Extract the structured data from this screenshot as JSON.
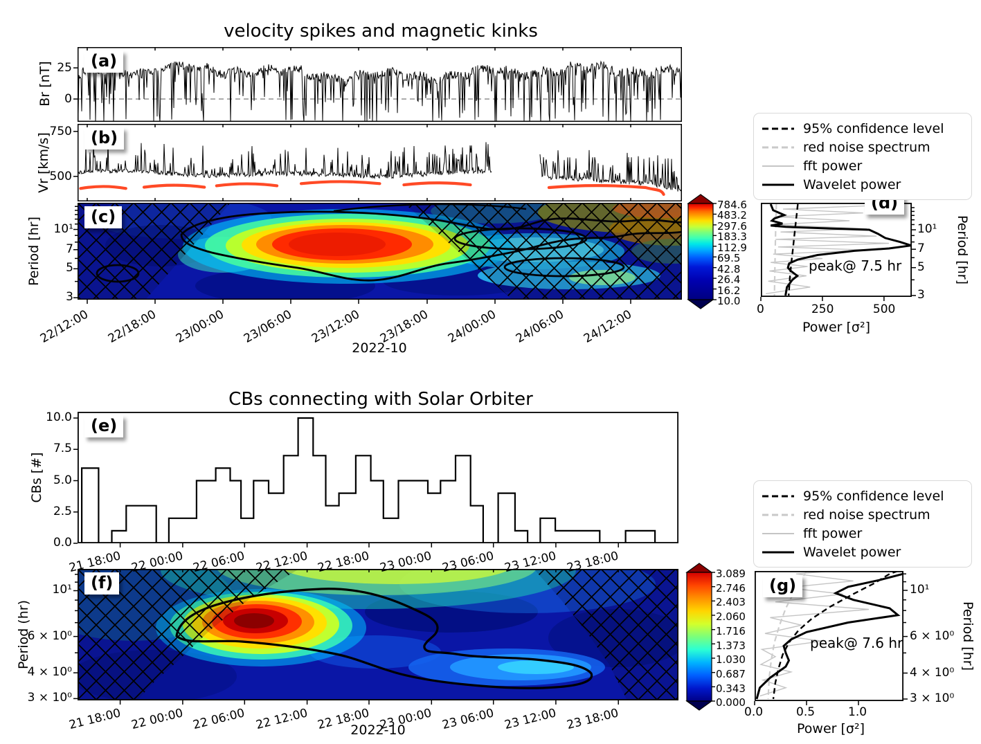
{
  "top": {
    "title": "velocity spikes and magnetic kinks",
    "xlabel": "2022-10",
    "xticklabels": [
      "22/12:00",
      "22/18:00",
      "23/00:00",
      "23/06:00",
      "23/12:00",
      "23/18:00",
      "24/00:00",
      "24/06:00",
      "24/12:00"
    ],
    "panel_a": {
      "letter": "(a)",
      "ylabel": "Br [nT]",
      "yticks": [
        "25",
        "0"
      ]
    },
    "panel_b": {
      "letter": "(b)",
      "ylabel": "Vr [km/s]",
      "yticks": [
        "750",
        "500"
      ]
    },
    "panel_c": {
      "letter": "(c)",
      "ylabel": "Period [hr]",
      "yticks": [
        "10¹",
        "7",
        "5",
        "3"
      ],
      "colorbar_ticks": [
        "784.6",
        "483.2",
        "297.6",
        "183.3",
        "112.9",
        "69.5",
        "42.8",
        "26.4",
        "16.2",
        "10.0"
      ]
    },
    "panel_d": {
      "letter": "(d)",
      "xlabel": "Power [σ²]",
      "xticks": [
        "0",
        "250",
        "500"
      ],
      "ylabel_right": "Period [hr]",
      "yticks": [
        "10¹",
        "7",
        "5",
        "3"
      ],
      "annotation": "peak@ 7.5 hr"
    }
  },
  "legend": {
    "items": [
      {
        "label": "95% confidence level",
        "style": "dashed-black"
      },
      {
        "label": "red noise spectrum",
        "style": "dashed-gray"
      },
      {
        "label": "fft power",
        "style": "solid-gray"
      },
      {
        "label": "Wavelet power",
        "style": "solid-black"
      }
    ]
  },
  "bottom": {
    "title": "CBs connecting with Solar Orbiter",
    "xlabel": "2022-10",
    "xticklabels": [
      "21 18:00",
      "22 00:00",
      "22 06:00",
      "22 12:00",
      "22 18:00",
      "23 00:00",
      "23 06:00",
      "23 12:00",
      "23 18:00"
    ],
    "panel_e": {
      "letter": "(e)",
      "ylabel": "CBs [#]",
      "yticks": [
        "0.0",
        "2.5",
        "5.0",
        "7.5",
        "10.0"
      ]
    },
    "panel_f": {
      "letter": "(f)",
      "ylabel": "Period (hr)",
      "yticks": [
        "10¹",
        "6 × 10⁰",
        "4 × 10⁰",
        "3 × 10⁰"
      ],
      "colorbar_ticks": [
        "3.089",
        "2.746",
        "2.403",
        "2.060",
        "1.716",
        "1.373",
        "1.030",
        "0.687",
        "0.343",
        "0.000"
      ]
    },
    "panel_g": {
      "letter": "(g)",
      "xlabel": "Power [σ²]",
      "xticks": [
        "0.0",
        "0.5",
        "1.0"
      ],
      "ylabel_right": "Period [hr]",
      "yticks": [
        "10¹",
        "6 × 10⁰",
        "4 × 10⁰",
        "3 × 10⁰"
      ],
      "annotation": "peak@ 7.6 hr"
    }
  },
  "chart_data": [
    {
      "panel": "a",
      "type": "line",
      "ylabel": "Br [nT]",
      "yticks": [
        25,
        0
      ],
      "ylim": [
        -18,
        42
      ],
      "zero_line_dashed_at": 0,
      "baseline_nT": 22,
      "spikes_down_to_nT": -18
    },
    {
      "panel": "b",
      "type": "line",
      "ylabel": "Vr [km/s]",
      "yticks": [
        750,
        500
      ],
      "ylim": [
        361,
        792
      ],
      "baseline_kms": 505,
      "data_gap_pct": [
        68.5,
        76.5
      ],
      "red_dashed_arcs": [
        {
          "x0_pct": 0.5,
          "x1_pct": 8,
          "v_kms": 443
        },
        {
          "x0_pct": 11,
          "x1_pct": 21,
          "v_kms": 450
        },
        {
          "x0_pct": 23,
          "x1_pct": 33,
          "v_kms": 458
        },
        {
          "x0_pct": 37,
          "x1_pct": 50,
          "v_kms": 470
        },
        {
          "x0_pct": 54,
          "x1_pct": 65,
          "v_kms": 463
        },
        {
          "x0_pct": 78,
          "x1_pct": 94,
          "v_kms": 448,
          "end_dip_kms": 400
        }
      ]
    },
    {
      "panel": "c",
      "type": "heatmap",
      "ylabel": "Period [hr]",
      "period_range_hr": [
        2.9,
        16
      ],
      "yticks_hr": [
        10,
        7,
        5,
        3
      ],
      "xlabel": "2022-10",
      "xticklabels": [
        "22/12:00",
        "22/18:00",
        "23/00:00",
        "23/06:00",
        "23/12:00",
        "23/18:00",
        "24/00:00",
        "24/06:00",
        "24/12:00"
      ],
      "colorbar_levels": [
        784.6,
        483.2,
        297.6,
        183.3,
        112.9,
        69.5,
        42.8,
        26.4,
        16.2,
        10.0
      ],
      "hot_spot": {
        "time": "23/06:00",
        "period_hr": 7.5
      },
      "coi_hatched": true
    },
    {
      "panel": "d",
      "type": "line",
      "xlabel": "Power [σ²]",
      "xticks": [
        0,
        250,
        500
      ],
      "xlim": [
        0,
        620
      ],
      "ylabel": "Period [hr]",
      "yticks_hr": [
        10,
        7,
        5,
        3
      ],
      "period_range_hr": [
        2.9,
        16.4
      ],
      "annotation": "peak@ 7.5 hr",
      "series": [
        {
          "name": "Wavelet power",
          "points_power_period": [
            [
              40,
              16
            ],
            [
              50,
              14.3
            ],
            [
              95,
              13.1
            ],
            [
              55,
              12.3
            ],
            [
              45,
              11.8
            ],
            [
              88,
              11.2
            ],
            [
              40,
              10.8
            ],
            [
              100,
              10.55
            ],
            [
              300,
              10.2
            ],
            [
              440,
              10.0
            ],
            [
              475,
              9.3
            ],
            [
              505,
              8.6
            ],
            [
              565,
              8.0
            ],
            [
              610,
              7.5
            ],
            [
              520,
              7.1
            ],
            [
              380,
              6.8
            ],
            [
              230,
              6.3
            ],
            [
              150,
              5.8
            ],
            [
              115,
              5.4
            ],
            [
              110,
              5.0
            ],
            [
              122,
              4.7
            ],
            [
              148,
              4.3
            ],
            [
              128,
              4.0
            ],
            [
              106,
              3.5
            ],
            [
              100,
              3.0
            ]
          ]
        },
        {
          "name": "95% confidence level",
          "points_power_period": [
            [
              150,
              16
            ],
            [
              143,
              12
            ],
            [
              136,
              9
            ],
            [
              130,
              7
            ],
            [
              124,
              5.5
            ],
            [
              118,
              4.2
            ],
            [
              113,
              3.0
            ]
          ]
        },
        {
          "name": "red noise spectrum",
          "points_power_period": [
            [
              63,
              16
            ],
            [
              61,
              12
            ],
            [
              59,
              8
            ],
            [
              57,
              5
            ],
            [
              55,
              3
            ]
          ]
        },
        {
          "name": "fft power",
          "points_power_period": [
            [
              430,
              15.5
            ],
            [
              90,
              14.6
            ],
            [
              415,
              13.6
            ],
            [
              55,
              12.7
            ],
            [
              360,
              11.8
            ],
            [
              50,
              11.0
            ],
            [
              430,
              10.2
            ],
            [
              80,
              9.6
            ],
            [
              470,
              8.9
            ],
            [
              60,
              8.4
            ],
            [
              520,
              7.8
            ],
            [
              70,
              7.3
            ],
            [
              430,
              6.9
            ],
            [
              50,
              6.4
            ],
            [
              250,
              5.9
            ],
            [
              40,
              5.5
            ],
            [
              190,
              5.1
            ],
            [
              35,
              4.7
            ],
            [
              185,
              4.3
            ],
            [
              30,
              3.9
            ],
            [
              200,
              3.5
            ],
            [
              20,
              3.1
            ]
          ]
        }
      ]
    },
    {
      "panel": "e",
      "type": "bar",
      "title": "CBs connecting with Solar Orbiter",
      "ylabel": "CBs [#]",
      "yticks": [
        0.0,
        2.5,
        5.0,
        7.5,
        10.0
      ],
      "ylim": [
        0,
        10.5
      ],
      "xticklabels": [
        "21 18:00",
        "22 00:00",
        "22 06:00",
        "22 12:00",
        "22 18:00",
        "23 00:00",
        "23 06:00",
        "23 12:00",
        "23 18:00"
      ],
      "steps_pct0_pct1_count": [
        [
          0.7,
          3.5,
          6
        ],
        [
          3.5,
          5.7,
          0
        ],
        [
          5.7,
          8.1,
          1
        ],
        [
          8.1,
          13.1,
          3
        ],
        [
          13.1,
          15.2,
          0
        ],
        [
          15.2,
          19.8,
          2
        ],
        [
          19.8,
          23.0,
          5
        ],
        [
          23.0,
          25.4,
          6
        ],
        [
          25.4,
          27.2,
          5
        ],
        [
          27.2,
          29.3,
          2
        ],
        [
          29.3,
          31.8,
          5
        ],
        [
          31.8,
          34.3,
          4
        ],
        [
          34.3,
          36.7,
          7
        ],
        [
          36.7,
          39.2,
          10
        ],
        [
          39.2,
          41.3,
          7
        ],
        [
          41.3,
          43.5,
          3
        ],
        [
          43.5,
          46.3,
          4
        ],
        [
          46.3,
          48.8,
          7
        ],
        [
          48.8,
          50.9,
          5
        ],
        [
          50.9,
          53.4,
          2
        ],
        [
          53.4,
          58.3,
          5
        ],
        [
          58.3,
          60.4,
          4
        ],
        [
          60.4,
          62.9,
          5
        ],
        [
          62.9,
          65.4,
          7
        ],
        [
          65.4,
          67.5,
          3
        ],
        [
          67.5,
          70.0,
          0
        ],
        [
          70.0,
          72.8,
          4
        ],
        [
          72.8,
          74.9,
          1
        ],
        [
          74.9,
          77.0,
          0
        ],
        [
          77.0,
          79.5,
          2
        ],
        [
          79.5,
          86.9,
          1
        ],
        [
          86.9,
          91.2,
          0
        ],
        [
          91.2,
          96.1,
          1
        ],
        [
          96.1,
          100,
          0
        ]
      ]
    },
    {
      "panel": "f",
      "type": "heatmap",
      "ylabel": "Period (hr)",
      "period_range_hr": [
        2.94,
        12.75
      ],
      "yticks_hr": [
        10,
        6,
        4,
        3
      ],
      "xlabel": "2022-10",
      "xticklabels": [
        "21 18:00",
        "22 00:00",
        "22 06:00",
        "22 12:00",
        "22 18:00",
        "23 00:00",
        "23 06:00",
        "23 12:00",
        "23 18:00"
      ],
      "colorbar_levels": [
        3.089,
        2.746,
        2.403,
        2.06,
        1.716,
        1.373,
        1.03,
        0.687,
        0.343,
        0.0
      ],
      "hot_spot": {
        "time": "22 06:00",
        "period_hr": 7.6
      },
      "coi_hatched": true
    },
    {
      "panel": "g",
      "type": "line",
      "xlabel": "Power [σ²]",
      "xticks": [
        0.0,
        0.5,
        1.0
      ],
      "xlim": [
        0,
        1.43
      ],
      "ylabel": "Period [hr]",
      "yticks_hr": [
        10,
        6,
        4,
        3
      ],
      "period_range_hr": [
        2.93,
        12.4
      ],
      "annotation": "peak@ 7.6 hr",
      "series": [
        {
          "name": "Wavelet power",
          "points_power_period": [
            [
              1.45,
              12.4
            ],
            [
              1.43,
              12.0
            ],
            [
              1.2,
              11.2
            ],
            [
              0.9,
              10.4
            ],
            [
              0.78,
              9.7
            ],
            [
              0.95,
              9.0
            ],
            [
              1.3,
              8.2
            ],
            [
              1.38,
              7.6
            ],
            [
              0.9,
              7.0
            ],
            [
              0.5,
              6.3
            ],
            [
              0.35,
              5.8
            ],
            [
              0.28,
              5.4
            ],
            [
              0.3,
              5.0
            ],
            [
              0.33,
              4.6
            ],
            [
              0.3,
              4.3
            ],
            [
              0.15,
              3.8
            ],
            [
              0.05,
              3.4
            ],
            [
              0.02,
              3.0
            ]
          ]
        },
        {
          "name": "95% confidence level",
          "points_power_period": [
            [
              1.38,
              12.4
            ],
            [
              1.3,
              12.0
            ],
            [
              1.15,
              10.8
            ],
            [
              0.95,
              9.6
            ],
            [
              0.72,
              8.3
            ],
            [
              0.55,
              7.3
            ],
            [
              0.42,
              6.4
            ],
            [
              0.33,
              5.6
            ],
            [
              0.27,
              4.9
            ],
            [
              0.23,
              4.2
            ],
            [
              0.2,
              3.6
            ],
            [
              0.18,
              3.0
            ]
          ]
        },
        {
          "name": "red noise spectrum",
          "points_power_period": [
            [
              0.5,
              12.4
            ],
            [
              0.46,
              11.5
            ],
            [
              0.38,
              9.8
            ],
            [
              0.3,
              8.2
            ],
            [
              0.24,
              6.8
            ],
            [
              0.19,
              5.6
            ],
            [
              0.16,
              4.6
            ],
            [
              0.14,
              3.8
            ],
            [
              0.13,
              3.0
            ]
          ]
        },
        {
          "name": "fft power",
          "points_power_period": [
            [
              0.75,
              12.4
            ],
            [
              0.4,
              12.0
            ],
            [
              0.95,
              11.1
            ],
            [
              0.3,
              10.3
            ],
            [
              0.85,
              9.6
            ],
            [
              0.2,
              8.8
            ],
            [
              1.1,
              8.1
            ],
            [
              0.15,
              7.4
            ],
            [
              0.45,
              6.8
            ],
            [
              0.1,
              6.2
            ],
            [
              0.65,
              5.7
            ],
            [
              0.07,
              5.2
            ],
            [
              0.2,
              4.8
            ],
            [
              0.06,
              4.4
            ],
            [
              0.35,
              4.05
            ],
            [
              0.08,
              3.7
            ],
            [
              0.3,
              3.4
            ],
            [
              0.05,
              3.1
            ]
          ]
        }
      ]
    }
  ],
  "colors": {
    "arc_red": "#ff4a26",
    "hot_red": "#ed1c00",
    "deep_blue": "#0a16a6",
    "gray_dashed": "#999999"
  }
}
